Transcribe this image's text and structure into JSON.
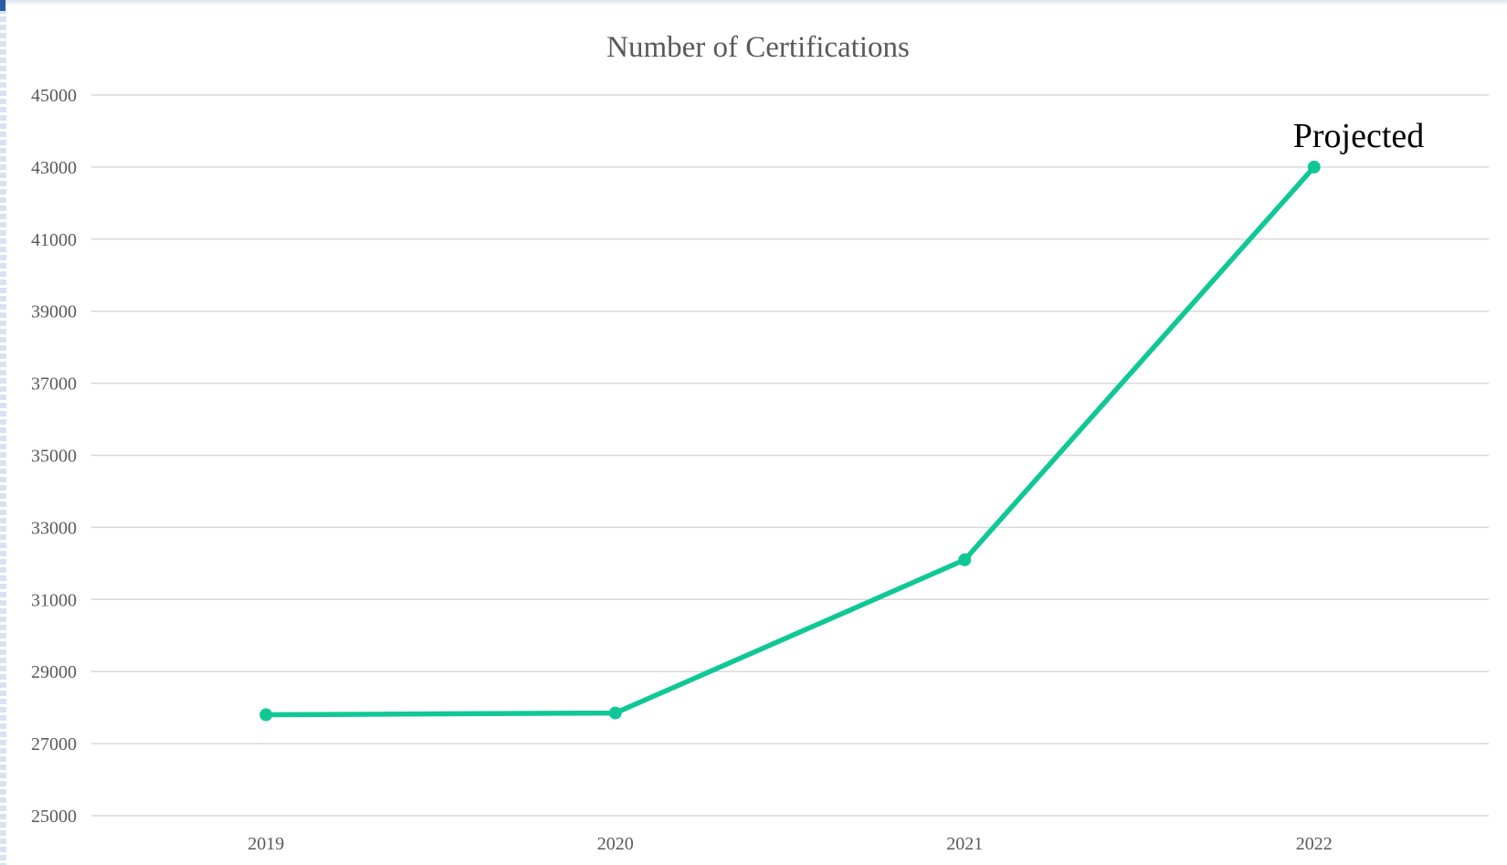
{
  "chart_data": {
    "type": "line",
    "title": "Number of Certifications",
    "xlabel": "",
    "ylabel": "",
    "categories": [
      "2019",
      "2020",
      "2021",
      "2022"
    ],
    "series": [
      {
        "values": [
          27800,
          27850,
          32100,
          43000
        ],
        "color": "#10c896"
      }
    ],
    "ylim": [
      25000,
      45000
    ],
    "yticks": [
      "25000",
      "27000",
      "29000",
      "31000",
      "33000",
      "35000",
      "37000",
      "39000",
      "41000",
      "43000",
      "45000"
    ],
    "grid": true,
    "annotations": [
      {
        "text": "Projected",
        "category": "2022"
      }
    ]
  }
}
